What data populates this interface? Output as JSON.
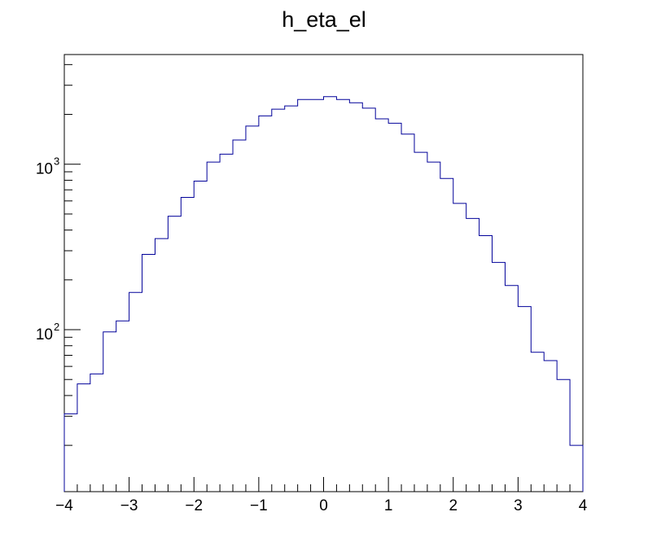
{
  "chart_data": {
    "type": "histogram",
    "title": "h_eta_el",
    "xlabel": "",
    "ylabel": "",
    "xlim": [
      -4,
      4
    ],
    "ylim": [
      10.5,
      4600
    ],
    "y_scale": "log",
    "grid": false,
    "line_color": "#000099",
    "x_tick_labels": [
      "−4",
      "−3",
      "−2",
      "−1",
      "0",
      "1",
      "2",
      "3",
      "4"
    ],
    "y_tick_labels": [
      {
        "value": 100,
        "base": "10",
        "exponent": "2"
      },
      {
        "value": 1000,
        "base": "10",
        "exponent": "3"
      }
    ],
    "bin_edges": [
      -4.0,
      -3.8,
      -3.6,
      -3.4,
      -3.2,
      -3.0,
      -2.8,
      -2.6,
      -2.4,
      -2.2,
      -2.0,
      -1.8,
      -1.6,
      -1.4,
      -1.2,
      -1.0,
      -0.8,
      -0.6,
      -0.4,
      -0.2,
      0.0,
      0.2,
      0.4,
      0.6,
      0.8,
      1.0,
      1.2,
      1.4,
      1.6,
      1.8,
      2.0,
      2.2,
      2.4,
      2.6,
      2.8,
      3.0,
      3.2,
      3.4,
      3.6,
      3.8,
      4.0
    ],
    "values": [
      31,
      47,
      54,
      97,
      113,
      168,
      285,
      355,
      485,
      630,
      790,
      1030,
      1150,
      1400,
      1700,
      1960,
      2150,
      2250,
      2460,
      2460,
      2560,
      2460,
      2350,
      2180,
      1880,
      1770,
      1520,
      1180,
      1030,
      820,
      580,
      470,
      370,
      255,
      185,
      138,
      73,
      65,
      50,
      20
    ]
  }
}
